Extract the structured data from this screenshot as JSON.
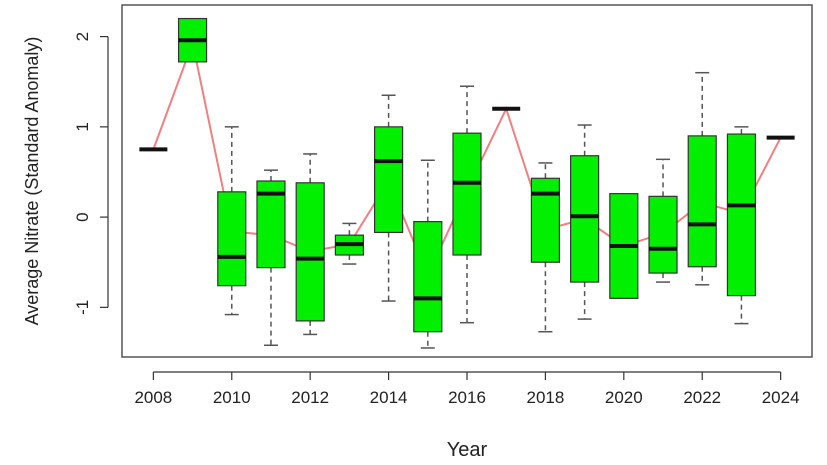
{
  "chart_data": {
    "type": "boxplot",
    "title": "",
    "xlabel": "Year",
    "ylabel": "Average Nitrate (Standard Anomaly)",
    "x_tick_labels": [
      "2008",
      "2010",
      "2012",
      "2014",
      "2016",
      "2018",
      "2020",
      "2022",
      "2024"
    ],
    "y_tick_labels": [
      "-1",
      "0",
      "1",
      "2"
    ],
    "ylim": [
      -1.55,
      2.35
    ],
    "xlim": [
      2007.2,
      2024.8
    ],
    "grid": false,
    "legend": "none",
    "colors": {
      "box_fill": "#00f000",
      "box_border": "#333333",
      "median": "#111111",
      "whisker": "#555555",
      "trend_line": "#f08080",
      "frame": "#555555"
    },
    "boxes": [
      {
        "year": 2008,
        "min": 0.75,
        "q1": 0.75,
        "median": 0.75,
        "q3": 0.75,
        "max": 0.75
      },
      {
        "year": 2009,
        "min": 1.72,
        "q1": 1.72,
        "median": 1.96,
        "q3": 2.2,
        "max": 2.2
      },
      {
        "year": 2010,
        "min": -1.08,
        "q1": -0.76,
        "median": -0.44,
        "q3": 0.28,
        "max": 1.0
      },
      {
        "year": 2011,
        "min": -1.42,
        "q1": -0.56,
        "median": 0.26,
        "q3": 0.4,
        "max": 0.52
      },
      {
        "year": 2012,
        "min": -1.3,
        "q1": -1.15,
        "median": -0.46,
        "q3": 0.38,
        "max": 0.7
      },
      {
        "year": 2013,
        "min": -0.52,
        "q1": -0.42,
        "median": -0.3,
        "q3": -0.2,
        "max": -0.07
      },
      {
        "year": 2014,
        "min": -0.93,
        "q1": -0.17,
        "median": 0.62,
        "q3": 1.0,
        "max": 1.35
      },
      {
        "year": 2015,
        "min": -1.45,
        "q1": -1.27,
        "median": -0.9,
        "q3": -0.05,
        "max": 0.63
      },
      {
        "year": 2016,
        "min": -1.17,
        "q1": -0.42,
        "median": 0.38,
        "q3": 0.93,
        "max": 1.45
      },
      {
        "year": 2017,
        "min": 1.2,
        "q1": 1.2,
        "median": 1.2,
        "q3": 1.2,
        "max": 1.2
      },
      {
        "year": 2018,
        "min": -1.27,
        "q1": -0.5,
        "median": 0.26,
        "q3": 0.43,
        "max": 0.6
      },
      {
        "year": 2019,
        "min": -1.13,
        "q1": -0.72,
        "median": 0.01,
        "q3": 0.68,
        "max": 1.02
      },
      {
        "year": 2020,
        "min": -0.9,
        "q1": -0.9,
        "median": -0.32,
        "q3": 0.26,
        "max": 0.26
      },
      {
        "year": 2021,
        "min": -0.72,
        "q1": -0.62,
        "median": -0.35,
        "q3": 0.23,
        "max": 0.64
      },
      {
        "year": 2022,
        "min": -0.75,
        "q1": -0.55,
        "median": -0.08,
        "q3": 0.9,
        "max": 1.6
      },
      {
        "year": 2023,
        "min": -1.18,
        "q1": -0.87,
        "median": 0.13,
        "q3": 0.92,
        "max": 1.0
      },
      {
        "year": 2024,
        "min": 0.88,
        "q1": 0.88,
        "median": 0.88,
        "q3": 0.88,
        "max": 0.88
      }
    ],
    "trend_line": [
      {
        "year": 2008,
        "value": 0.75
      },
      {
        "year": 2009,
        "value": 1.93
      },
      {
        "year": 2010,
        "value": -0.16
      },
      {
        "year": 2011,
        "value": -0.2
      },
      {
        "year": 2012,
        "value": -0.38
      },
      {
        "year": 2013,
        "value": -0.3
      },
      {
        "year": 2014,
        "value": 0.4
      },
      {
        "year": 2015,
        "value": -0.65
      },
      {
        "year": 2016,
        "value": 0.3
      },
      {
        "year": 2017,
        "value": 1.2
      },
      {
        "year": 2018,
        "value": -0.14
      },
      {
        "year": 2019,
        "value": -0.02
      },
      {
        "year": 2020,
        "value": -0.32
      },
      {
        "year": 2021,
        "value": -0.18
      },
      {
        "year": 2022,
        "value": 0.16
      },
      {
        "year": 2023,
        "value": 0.04
      },
      {
        "year": 2024,
        "value": 0.88
      }
    ]
  }
}
